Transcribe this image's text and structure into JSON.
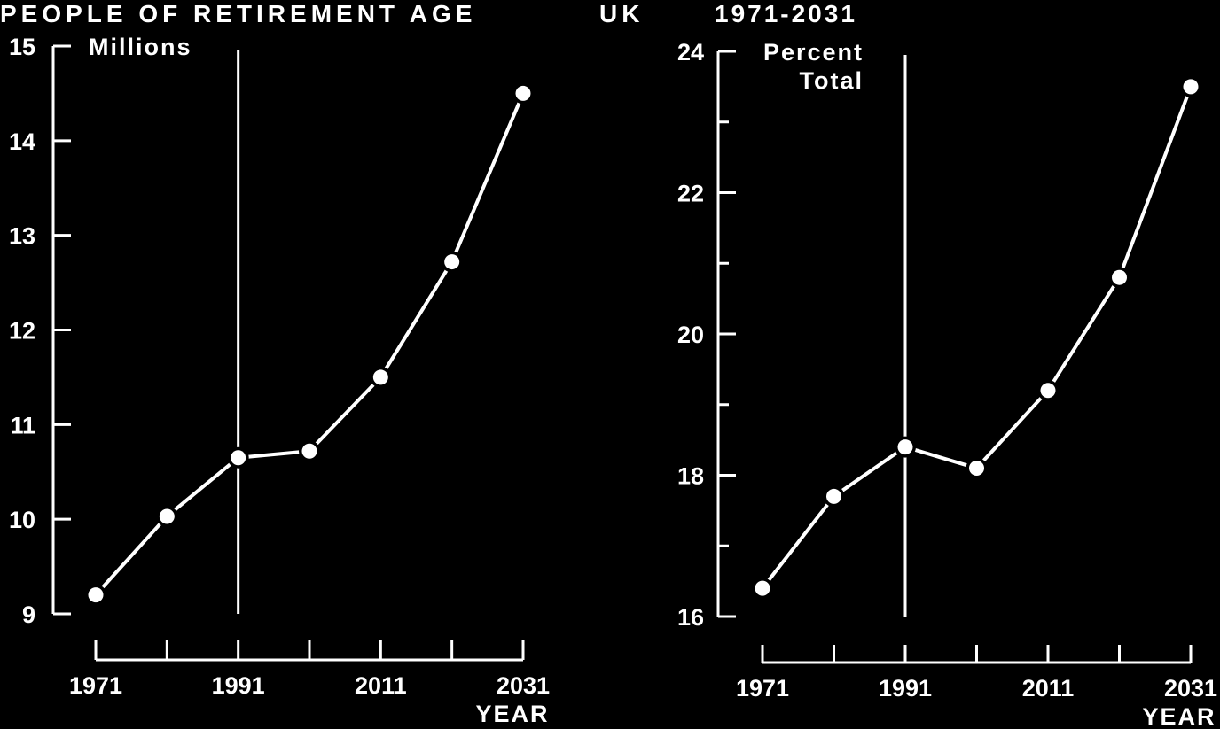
{
  "title_left": "PEOPLE OF RETIREMENT AGE",
  "title_mid": "UK",
  "title_right": "1971-2031",
  "chart_data": [
    {
      "type": "line",
      "ylabel": "Millions",
      "xlabel": "YEAR",
      "ylim": [
        9,
        15
      ],
      "yticks": [
        "9",
        "10",
        "11",
        "12",
        "13",
        "14",
        "15"
      ],
      "xlim": [
        1971,
        2031
      ],
      "xticks": [
        "1971",
        "1991",
        "2011",
        "2031"
      ],
      "x": [
        1971,
        1981,
        1991,
        2001,
        2011,
        2021,
        2031
      ],
      "values": [
        9.2,
        10.03,
        10.65,
        10.72,
        11.5,
        12.72,
        14.5
      ],
      "marker_year": 1991,
      "color": "#ffffff"
    },
    {
      "type": "line",
      "ylabel": [
        "Percent",
        "Total"
      ],
      "xlabel": "YEAR",
      "ylim": [
        16,
        24
      ],
      "yticks": [
        "16",
        "18",
        "20",
        "22",
        "24"
      ],
      "xlim": [
        1971,
        2031
      ],
      "xticks": [
        "1971",
        "1991",
        "2011",
        "2031"
      ],
      "x": [
        1971,
        1981,
        1991,
        2001,
        2011,
        2021,
        2031
      ],
      "values": [
        16.4,
        17.7,
        18.4,
        18.1,
        19.2,
        20.8,
        23.5
      ],
      "marker_year": 1991,
      "color": "#ffffff"
    }
  ]
}
